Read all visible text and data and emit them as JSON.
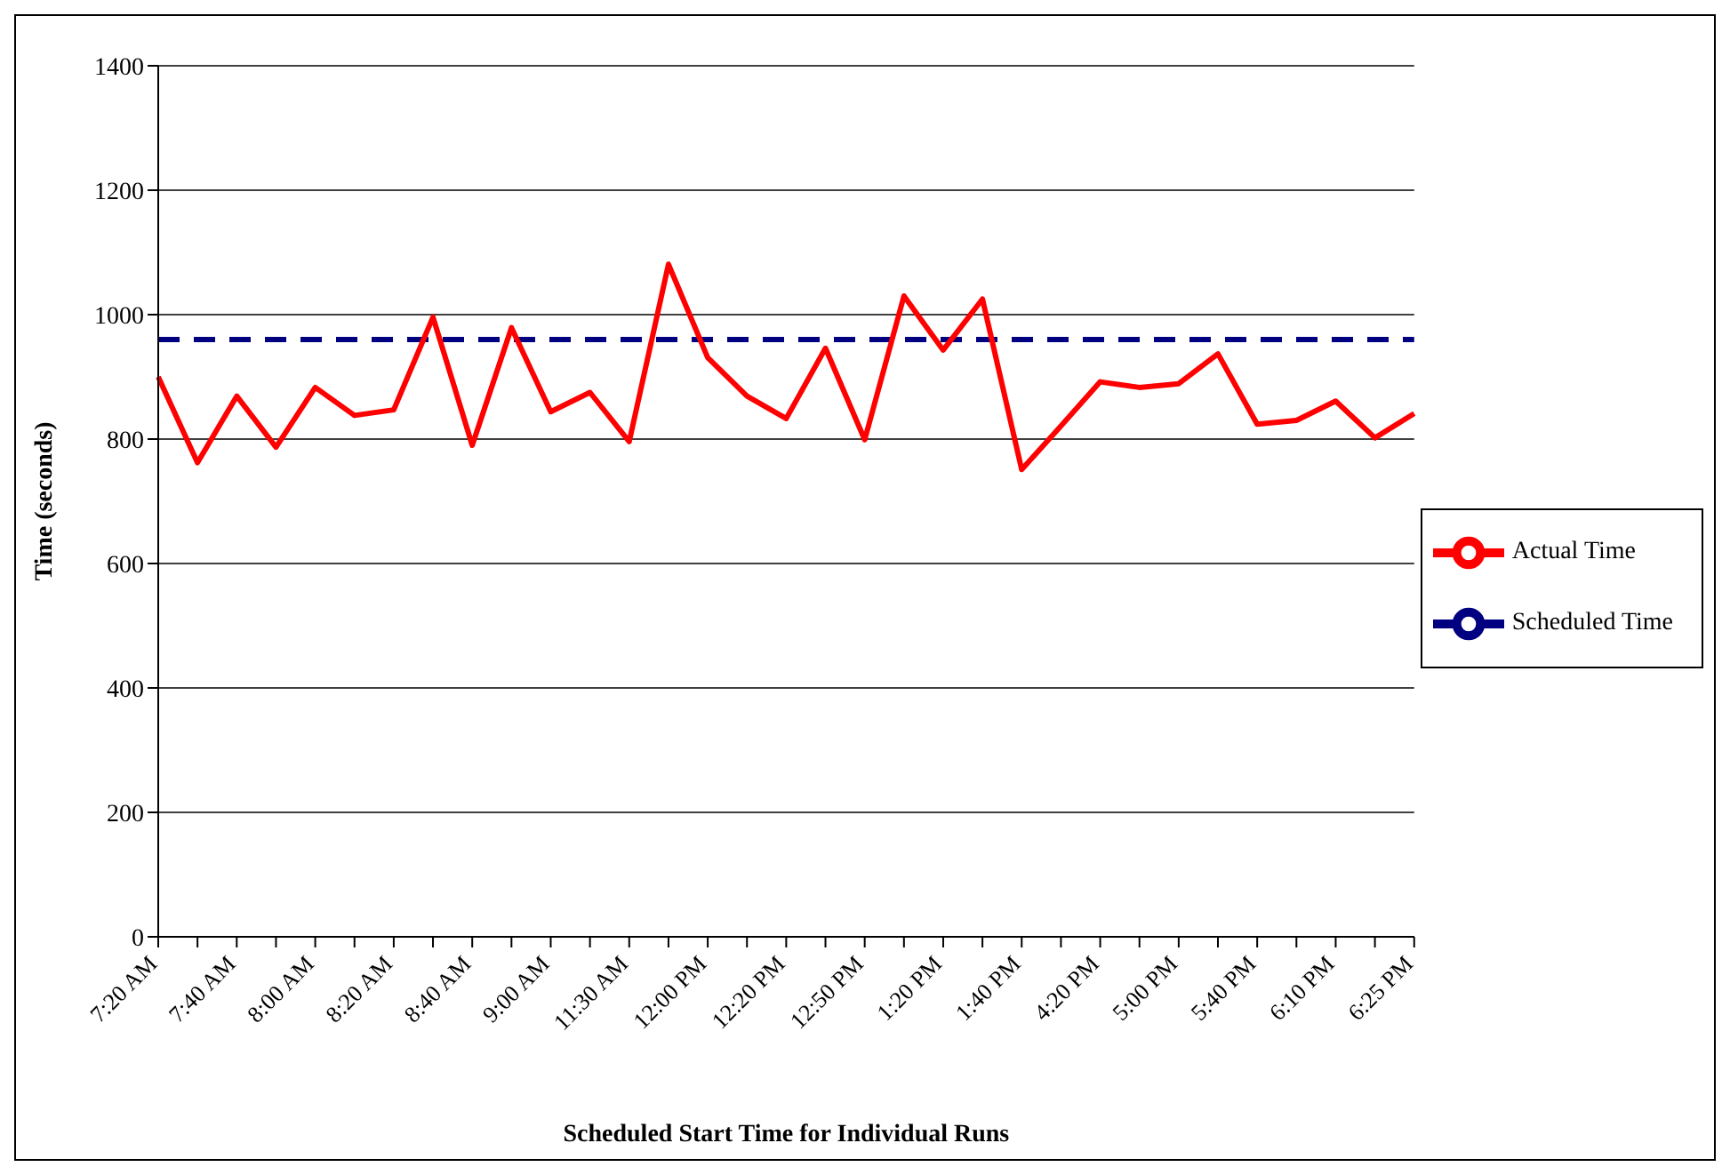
{
  "chart_data": {
    "type": "line",
    "xlabel": "Scheduled Start Time for Individual Runs",
    "ylabel": "Time (seconds)",
    "categories": [
      "7:20 AM",
      null,
      "7:40 AM",
      null,
      "8:00 AM",
      null,
      "8:20 AM",
      null,
      "8:40 AM",
      null,
      "9:00 AM",
      null,
      "11:30 AM",
      null,
      "12:00 PM",
      null,
      "12:20 PM",
      null,
      "12:50 PM",
      null,
      "1:20 PM",
      null,
      "1:40 PM",
      null,
      "4:20 PM",
      null,
      "5:00 PM",
      null,
      "5:40 PM",
      null,
      "6:10 PM",
      null,
      "6:25 PM"
    ],
    "series": [
      {
        "name": "Scheduled Time",
        "color": "#000080",
        "line_style": "dashed",
        "values": [
          960,
          960,
          960,
          960,
          960,
          960,
          960,
          960,
          960,
          960,
          960,
          960,
          960,
          960,
          960,
          960,
          960,
          960,
          960,
          960,
          960,
          960,
          960,
          960,
          960,
          960,
          960,
          960,
          960,
          960,
          960,
          960,
          960
        ]
      },
      {
        "name": "Actual Time",
        "color": "#ff0000",
        "line_style": "solid",
        "values": [
          900,
          762,
          869,
          787,
          883,
          838,
          847,
          996,
          790,
          979,
          844,
          875,
          796,
          1081,
          931,
          869,
          833,
          946,
          799,
          1030,
          943,
          1025,
          751,
          821,
          892,
          883,
          889,
          937,
          824,
          830,
          861,
          802,
          841
        ]
      }
    ],
    "ylim": [
      0,
      1400
    ],
    "yticks": [
      0,
      200,
      400,
      600,
      800,
      1000,
      1200,
      1400
    ],
    "grid": "y",
    "legend": "right",
    "marker": "none"
  }
}
